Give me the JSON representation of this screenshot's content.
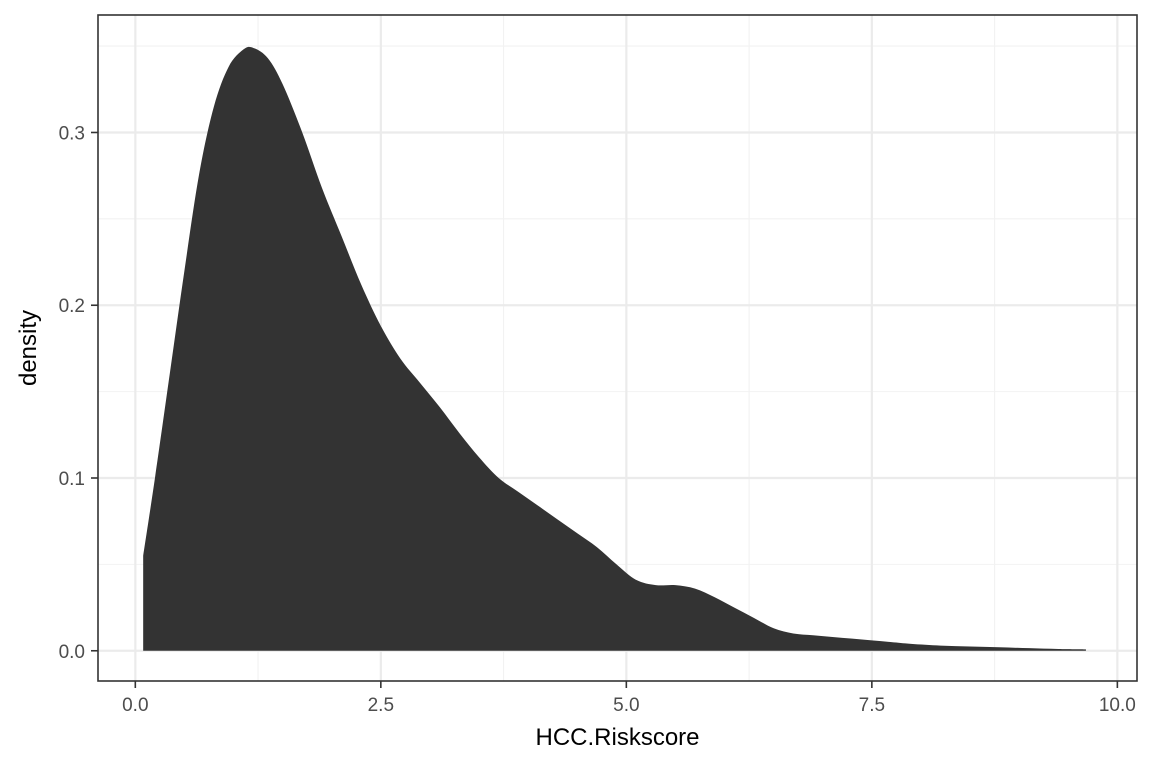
{
  "chart_data": {
    "type": "area",
    "geom": "density",
    "title": "",
    "xlabel": "HCC.Riskscore",
    "ylabel": "density",
    "xlim": [
      -0.38,
      10.2
    ],
    "ylim": [
      -0.0175,
      0.368
    ],
    "x_ticks": [
      0.0,
      2.5,
      5.0,
      7.5,
      10.0
    ],
    "x_tick_labels": [
      "0.0",
      "2.5",
      "5.0",
      "7.5",
      "10.0"
    ],
    "y_ticks": [
      0.0,
      0.1,
      0.2,
      0.3
    ],
    "y_tick_labels": [
      "0.0",
      "0.1",
      "0.2",
      "0.3"
    ],
    "grid": true,
    "legend": "none",
    "fill_color": "#333333",
    "panel_border_color": "#333333",
    "series": [
      {
        "x": [
          0.08,
          0.2,
          0.35,
          0.5,
          0.65,
          0.8,
          0.95,
          1.1,
          1.2,
          1.35,
          1.5,
          1.7,
          1.9,
          2.1,
          2.3,
          2.5,
          2.7,
          2.9,
          3.1,
          3.3,
          3.5,
          3.7,
          3.9,
          4.1,
          4.3,
          4.5,
          4.7,
          4.9,
          5.1,
          5.3,
          5.5,
          5.7,
          5.9,
          6.1,
          6.3,
          6.5,
          6.7,
          6.9,
          7.1,
          7.3,
          7.5,
          7.7,
          7.9,
          8.2,
          8.5,
          8.8,
          9.1,
          9.4,
          9.68
        ],
        "y": [
          0.055,
          0.1,
          0.16,
          0.22,
          0.276,
          0.315,
          0.338,
          0.348,
          0.349,
          0.343,
          0.328,
          0.3,
          0.268,
          0.24,
          0.212,
          0.188,
          0.169,
          0.155,
          0.141,
          0.126,
          0.112,
          0.1,
          0.092,
          0.084,
          0.076,
          0.068,
          0.06,
          0.05,
          0.041,
          0.038,
          0.038,
          0.036,
          0.031,
          0.025,
          0.019,
          0.013,
          0.01,
          0.009,
          0.008,
          0.007,
          0.006,
          0.005,
          0.004,
          0.003,
          0.0025,
          0.002,
          0.0015,
          0.001,
          0.0008
        ]
      }
    ]
  }
}
